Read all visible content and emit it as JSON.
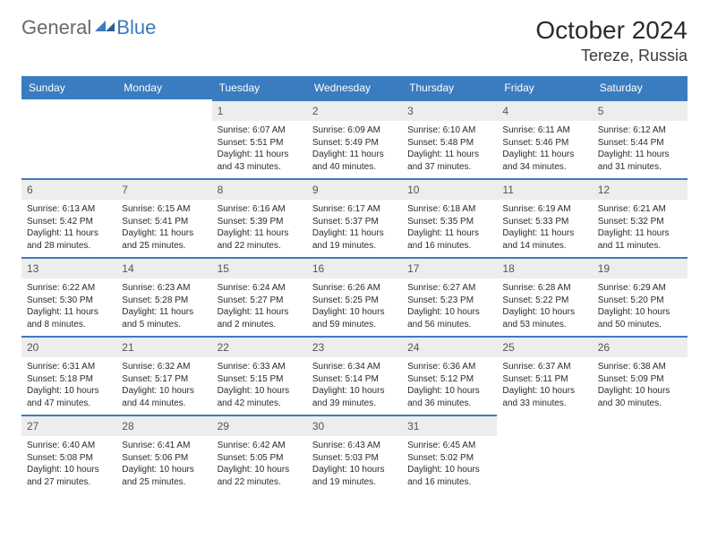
{
  "logo": {
    "text_general": "General",
    "text_blue": "Blue",
    "color_general": "#6a6a6a",
    "color_blue": "#3a7cc0"
  },
  "header": {
    "title": "October 2024",
    "location": "Tereze, Russia"
  },
  "colors": {
    "header_bg": "#3a7cc0",
    "header_fg": "#ffffff",
    "daynum_bg": "#ededed",
    "daynum_border": "#3a7cc0",
    "page_bg": "#ffffff"
  },
  "day_names": [
    "Sunday",
    "Monday",
    "Tuesday",
    "Wednesday",
    "Thursday",
    "Friday",
    "Saturday"
  ],
  "weeks": [
    [
      null,
      null,
      {
        "n": "1",
        "sunrise": "Sunrise: 6:07 AM",
        "sunset": "Sunset: 5:51 PM",
        "daylight": "Daylight: 11 hours and 43 minutes."
      },
      {
        "n": "2",
        "sunrise": "Sunrise: 6:09 AM",
        "sunset": "Sunset: 5:49 PM",
        "daylight": "Daylight: 11 hours and 40 minutes."
      },
      {
        "n": "3",
        "sunrise": "Sunrise: 6:10 AM",
        "sunset": "Sunset: 5:48 PM",
        "daylight": "Daylight: 11 hours and 37 minutes."
      },
      {
        "n": "4",
        "sunrise": "Sunrise: 6:11 AM",
        "sunset": "Sunset: 5:46 PM",
        "daylight": "Daylight: 11 hours and 34 minutes."
      },
      {
        "n": "5",
        "sunrise": "Sunrise: 6:12 AM",
        "sunset": "Sunset: 5:44 PM",
        "daylight": "Daylight: 11 hours and 31 minutes."
      }
    ],
    [
      {
        "n": "6",
        "sunrise": "Sunrise: 6:13 AM",
        "sunset": "Sunset: 5:42 PM",
        "daylight": "Daylight: 11 hours and 28 minutes."
      },
      {
        "n": "7",
        "sunrise": "Sunrise: 6:15 AM",
        "sunset": "Sunset: 5:41 PM",
        "daylight": "Daylight: 11 hours and 25 minutes."
      },
      {
        "n": "8",
        "sunrise": "Sunrise: 6:16 AM",
        "sunset": "Sunset: 5:39 PM",
        "daylight": "Daylight: 11 hours and 22 minutes."
      },
      {
        "n": "9",
        "sunrise": "Sunrise: 6:17 AM",
        "sunset": "Sunset: 5:37 PM",
        "daylight": "Daylight: 11 hours and 19 minutes."
      },
      {
        "n": "10",
        "sunrise": "Sunrise: 6:18 AM",
        "sunset": "Sunset: 5:35 PM",
        "daylight": "Daylight: 11 hours and 16 minutes."
      },
      {
        "n": "11",
        "sunrise": "Sunrise: 6:19 AM",
        "sunset": "Sunset: 5:33 PM",
        "daylight": "Daylight: 11 hours and 14 minutes."
      },
      {
        "n": "12",
        "sunrise": "Sunrise: 6:21 AM",
        "sunset": "Sunset: 5:32 PM",
        "daylight": "Daylight: 11 hours and 11 minutes."
      }
    ],
    [
      {
        "n": "13",
        "sunrise": "Sunrise: 6:22 AM",
        "sunset": "Sunset: 5:30 PM",
        "daylight": "Daylight: 11 hours and 8 minutes."
      },
      {
        "n": "14",
        "sunrise": "Sunrise: 6:23 AM",
        "sunset": "Sunset: 5:28 PM",
        "daylight": "Daylight: 11 hours and 5 minutes."
      },
      {
        "n": "15",
        "sunrise": "Sunrise: 6:24 AM",
        "sunset": "Sunset: 5:27 PM",
        "daylight": "Daylight: 11 hours and 2 minutes."
      },
      {
        "n": "16",
        "sunrise": "Sunrise: 6:26 AM",
        "sunset": "Sunset: 5:25 PM",
        "daylight": "Daylight: 10 hours and 59 minutes."
      },
      {
        "n": "17",
        "sunrise": "Sunrise: 6:27 AM",
        "sunset": "Sunset: 5:23 PM",
        "daylight": "Daylight: 10 hours and 56 minutes."
      },
      {
        "n": "18",
        "sunrise": "Sunrise: 6:28 AM",
        "sunset": "Sunset: 5:22 PM",
        "daylight": "Daylight: 10 hours and 53 minutes."
      },
      {
        "n": "19",
        "sunrise": "Sunrise: 6:29 AM",
        "sunset": "Sunset: 5:20 PM",
        "daylight": "Daylight: 10 hours and 50 minutes."
      }
    ],
    [
      {
        "n": "20",
        "sunrise": "Sunrise: 6:31 AM",
        "sunset": "Sunset: 5:18 PM",
        "daylight": "Daylight: 10 hours and 47 minutes."
      },
      {
        "n": "21",
        "sunrise": "Sunrise: 6:32 AM",
        "sunset": "Sunset: 5:17 PM",
        "daylight": "Daylight: 10 hours and 44 minutes."
      },
      {
        "n": "22",
        "sunrise": "Sunrise: 6:33 AM",
        "sunset": "Sunset: 5:15 PM",
        "daylight": "Daylight: 10 hours and 42 minutes."
      },
      {
        "n": "23",
        "sunrise": "Sunrise: 6:34 AM",
        "sunset": "Sunset: 5:14 PM",
        "daylight": "Daylight: 10 hours and 39 minutes."
      },
      {
        "n": "24",
        "sunrise": "Sunrise: 6:36 AM",
        "sunset": "Sunset: 5:12 PM",
        "daylight": "Daylight: 10 hours and 36 minutes."
      },
      {
        "n": "25",
        "sunrise": "Sunrise: 6:37 AM",
        "sunset": "Sunset: 5:11 PM",
        "daylight": "Daylight: 10 hours and 33 minutes."
      },
      {
        "n": "26",
        "sunrise": "Sunrise: 6:38 AM",
        "sunset": "Sunset: 5:09 PM",
        "daylight": "Daylight: 10 hours and 30 minutes."
      }
    ],
    [
      {
        "n": "27",
        "sunrise": "Sunrise: 6:40 AM",
        "sunset": "Sunset: 5:08 PM",
        "daylight": "Daylight: 10 hours and 27 minutes."
      },
      {
        "n": "28",
        "sunrise": "Sunrise: 6:41 AM",
        "sunset": "Sunset: 5:06 PM",
        "daylight": "Daylight: 10 hours and 25 minutes."
      },
      {
        "n": "29",
        "sunrise": "Sunrise: 6:42 AM",
        "sunset": "Sunset: 5:05 PM",
        "daylight": "Daylight: 10 hours and 22 minutes."
      },
      {
        "n": "30",
        "sunrise": "Sunrise: 6:43 AM",
        "sunset": "Sunset: 5:03 PM",
        "daylight": "Daylight: 10 hours and 19 minutes."
      },
      {
        "n": "31",
        "sunrise": "Sunrise: 6:45 AM",
        "sunset": "Sunset: 5:02 PM",
        "daylight": "Daylight: 10 hours and 16 minutes."
      },
      null,
      null
    ]
  ]
}
